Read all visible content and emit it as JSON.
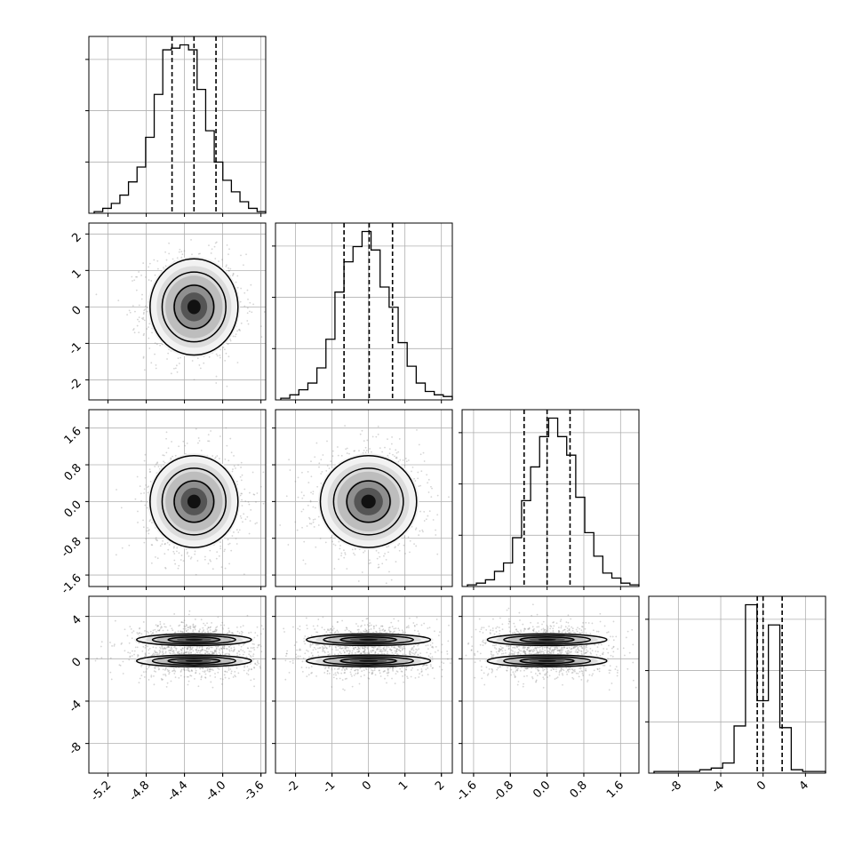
{
  "chart_data": {
    "type": "corner",
    "title": "",
    "grid": true,
    "colors": {
      "hist": "#000000",
      "contour": "#000000",
      "points": "#888888",
      "grid": "#b0b0b0",
      "quantile": "#000000"
    },
    "params": [
      {
        "xlim": [
          -5.4,
          -3.55
        ],
        "ticks": [
          "-5.2",
          "-4.8",
          "-4.4",
          "-4.0",
          "-3.6"
        ],
        "tick_values": [
          -5.2,
          -4.8,
          -4.4,
          -4.0,
          -3.6
        ],
        "quantiles": [
          -4.53,
          -4.3,
          -4.07
        ],
        "hist": [
          0.01,
          0.03,
          0.06,
          0.11,
          0.19,
          0.28,
          0.46,
          0.72,
          0.99,
          1.0,
          1.02,
          0.99,
          0.75,
          0.5,
          0.31,
          0.2,
          0.13,
          0.07,
          0.03,
          0.01
        ]
      },
      {
        "xlim": [
          -2.55,
          2.3
        ],
        "ticks": [
          "-2",
          "-1",
          "0",
          "1",
          "2"
        ],
        "tick_values": [
          -2,
          -1,
          0,
          1,
          2
        ],
        "quantiles": [
          -0.67,
          0.02,
          0.66
        ],
        "hist": [
          0.01,
          0.03,
          0.06,
          0.1,
          0.19,
          0.36,
          0.64,
          0.82,
          0.91,
          1.0,
          0.89,
          0.67,
          0.55,
          0.34,
          0.2,
          0.1,
          0.05,
          0.03,
          0.02
        ]
      },
      {
        "xlim": [
          -1.85,
          2.0
        ],
        "ticks": [
          "-1.6",
          "-0.8",
          "0.0",
          "0.8",
          "1.6"
        ],
        "tick_values": [
          -1.6,
          -0.8,
          0.0,
          0.8,
          1.6
        ],
        "quantiles": [
          -0.5,
          0.0,
          0.5
        ],
        "hist": [
          0.01,
          0.02,
          0.04,
          0.09,
          0.14,
          0.29,
          0.51,
          0.71,
          0.89,
          1.0,
          0.89,
          0.78,
          0.53,
          0.32,
          0.18,
          0.08,
          0.05,
          0.02,
          0.01
        ]
      },
      {
        "xlim": [
          -10.8,
          5.9
        ],
        "ticks": [
          "-8",
          "-4",
          "0",
          "4"
        ],
        "tick_values": [
          -8,
          -4,
          0,
          4
        ],
        "quantiles": [
          -0.55,
          0.0,
          1.8
        ],
        "hist": [
          0.01,
          0.01,
          0.01,
          0.01,
          0.02,
          0.03,
          0.06,
          0.28,
          1.0,
          0.43,
          0.88,
          0.27,
          0.02,
          0.01,
          0.01
        ]
      }
    ],
    "y_ticks": {
      "1": {
        "ticks": [
          "-2",
          "-1",
          "0",
          "1",
          "2"
        ],
        "tick_values": [
          -2,
          -1,
          0,
          1,
          2
        ],
        "ylim": [
          -2.55,
          2.3
        ]
      },
      "2": {
        "ticks": [
          "-1.6",
          "-0.8",
          "0.0",
          "0.8",
          "1.6"
        ],
        "tick_values": [
          -1.6,
          -0.8,
          0.0,
          0.8,
          1.6
        ],
        "ylim": [
          -1.85,
          2.0
        ]
      },
      "3": {
        "ticks": [
          "-8",
          "-4",
          "0",
          "4"
        ],
        "tick_values": [
          -8,
          -4,
          0,
          4
        ],
        "ylim": [
          -10.8,
          5.9
        ]
      }
    },
    "panels": [
      {
        "row": 1,
        "col": 0,
        "centers": [
          [
            -4.3,
            0.0
          ]
        ],
        "sx": 0.23,
        "sy": 0.66
      },
      {
        "row": 2,
        "col": 0,
        "centers": [
          [
            -4.3,
            0.0
          ]
        ],
        "sx": 0.23,
        "sy": 0.5
      },
      {
        "row": 2,
        "col": 1,
        "centers": [
          [
            0.0,
            0.0
          ]
        ],
        "sx": 0.66,
        "sy": 0.5
      },
      {
        "row": 3,
        "col": 0,
        "centers": [
          [
            -4.3,
            1.8
          ],
          [
            -4.3,
            -0.2
          ]
        ],
        "sx": 0.3,
        "sy": 0.55
      },
      {
        "row": 3,
        "col": 1,
        "centers": [
          [
            0.0,
            1.8
          ],
          [
            0.0,
            -0.2
          ]
        ],
        "sx": 0.85,
        "sy": 0.55
      },
      {
        "row": 3,
        "col": 2,
        "centers": [
          [
            0.0,
            1.8
          ],
          [
            0.0,
            -0.2
          ]
        ],
        "sx": 0.65,
        "sy": 0.55
      }
    ]
  }
}
